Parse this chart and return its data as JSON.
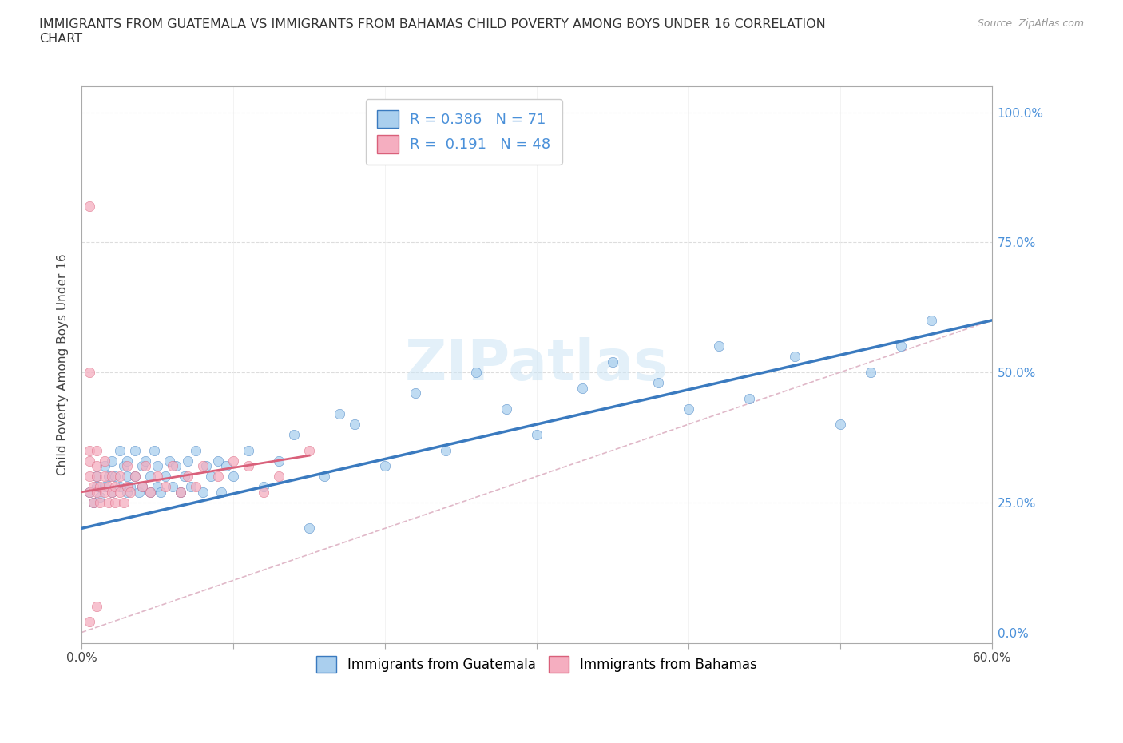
{
  "title": "IMMIGRANTS FROM GUATEMALA VS IMMIGRANTS FROM BAHAMAS CHILD POVERTY AMONG BOYS UNDER 16 CORRELATION\nCHART",
  "source": "Source: ZipAtlas.com",
  "ylabel": "Child Poverty Among Boys Under 16",
  "xlim": [
    0.0,
    0.6
  ],
  "ylim": [
    -0.02,
    1.05
  ],
  "ytick_vals": [
    0.0,
    0.25,
    0.5,
    0.75,
    1.0
  ],
  "ytick_labels": [
    "0.0%",
    "25.0%",
    "50.0%",
    "75.0%",
    "100.0%"
  ],
  "xtick_vals": [
    0.0,
    0.1,
    0.2,
    0.3,
    0.4,
    0.5,
    0.6
  ],
  "xtick_labels": [
    "0.0%",
    "",
    "",
    "",
    "",
    "",
    "60.0%"
  ],
  "r_guatemala": 0.386,
  "n_guatemala": 71,
  "r_bahamas": 0.191,
  "n_bahamas": 48,
  "color_guatemala": "#aacfee",
  "color_bahamas": "#f5aec0",
  "line_color_guatemala": "#3a7abf",
  "line_color_bahamas": "#d9607a",
  "diagonal_color": "#e0b8c8",
  "guatemala_x": [
    0.005,
    0.008,
    0.01,
    0.01,
    0.012,
    0.015,
    0.015,
    0.018,
    0.02,
    0.02,
    0.022,
    0.025,
    0.025,
    0.028,
    0.03,
    0.03,
    0.03,
    0.032,
    0.035,
    0.035,
    0.038,
    0.04,
    0.04,
    0.042,
    0.045,
    0.045,
    0.048,
    0.05,
    0.05,
    0.052,
    0.055,
    0.058,
    0.06,
    0.062,
    0.065,
    0.068,
    0.07,
    0.072,
    0.075,
    0.08,
    0.082,
    0.085,
    0.09,
    0.092,
    0.095,
    0.1,
    0.11,
    0.12,
    0.13,
    0.14,
    0.15,
    0.16,
    0.17,
    0.18,
    0.2,
    0.22,
    0.24,
    0.26,
    0.28,
    0.3,
    0.33,
    0.35,
    0.38,
    0.4,
    0.42,
    0.44,
    0.47,
    0.5,
    0.52,
    0.54,
    0.56
  ],
  "guatemala_y": [
    0.27,
    0.25,
    0.28,
    0.3,
    0.26,
    0.32,
    0.28,
    0.3,
    0.27,
    0.33,
    0.3,
    0.28,
    0.35,
    0.32,
    0.27,
    0.3,
    0.33,
    0.28,
    0.3,
    0.35,
    0.27,
    0.32,
    0.28,
    0.33,
    0.3,
    0.27,
    0.35,
    0.28,
    0.32,
    0.27,
    0.3,
    0.33,
    0.28,
    0.32,
    0.27,
    0.3,
    0.33,
    0.28,
    0.35,
    0.27,
    0.32,
    0.3,
    0.33,
    0.27,
    0.32,
    0.3,
    0.35,
    0.28,
    0.33,
    0.38,
    0.2,
    0.3,
    0.42,
    0.4,
    0.32,
    0.46,
    0.35,
    0.5,
    0.43,
    0.38,
    0.47,
    0.52,
    0.48,
    0.43,
    0.55,
    0.45,
    0.53,
    0.4,
    0.5,
    0.55,
    0.6
  ],
  "bahamas_x": [
    0.005,
    0.005,
    0.005,
    0.005,
    0.008,
    0.008,
    0.01,
    0.01,
    0.01,
    0.01,
    0.012,
    0.012,
    0.015,
    0.015,
    0.015,
    0.018,
    0.018,
    0.02,
    0.02,
    0.022,
    0.022,
    0.025,
    0.025,
    0.028,
    0.03,
    0.03,
    0.032,
    0.035,
    0.04,
    0.042,
    0.045,
    0.05,
    0.055,
    0.06,
    0.065,
    0.07,
    0.075,
    0.08,
    0.09,
    0.1,
    0.11,
    0.12,
    0.13,
    0.15,
    0.005,
    0.005,
    0.005,
    0.01
  ],
  "bahamas_y": [
    0.27,
    0.3,
    0.33,
    0.35,
    0.25,
    0.28,
    0.27,
    0.3,
    0.32,
    0.35,
    0.25,
    0.28,
    0.27,
    0.3,
    0.33,
    0.25,
    0.28,
    0.27,
    0.3,
    0.25,
    0.28,
    0.27,
    0.3,
    0.25,
    0.28,
    0.32,
    0.27,
    0.3,
    0.28,
    0.32,
    0.27,
    0.3,
    0.28,
    0.32,
    0.27,
    0.3,
    0.28,
    0.32,
    0.3,
    0.33,
    0.32,
    0.27,
    0.3,
    0.35,
    0.82,
    0.5,
    0.02,
    0.05
  ],
  "guatemala_line_x": [
    0.0,
    0.6
  ],
  "guatemala_line_y": [
    0.2,
    0.6
  ],
  "bahamas_line_x": [
    0.0,
    0.15
  ],
  "bahamas_line_y": [
    0.27,
    0.34
  ]
}
